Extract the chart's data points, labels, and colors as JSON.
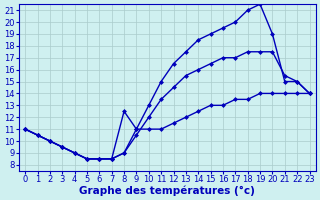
{
  "xlabel": "Graphe des températures (°c)",
  "background_color": "#cff0f0",
  "grid_color": "#aacccc",
  "line_color": "#0000bb",
  "xlim": [
    -0.5,
    23.5
  ],
  "ylim": [
    7.5,
    21.5
  ],
  "xticks": [
    0,
    1,
    2,
    3,
    4,
    5,
    6,
    7,
    8,
    9,
    10,
    11,
    12,
    13,
    14,
    15,
    16,
    17,
    18,
    19,
    20,
    21,
    22,
    23
  ],
  "yticks": [
    8,
    9,
    10,
    11,
    12,
    13,
    14,
    15,
    16,
    17,
    18,
    19,
    20,
    21
  ],
  "line_top_x": [
    0,
    1,
    2,
    3,
    4,
    5,
    6,
    7,
    8,
    9,
    10,
    11,
    12,
    13,
    14,
    15,
    16,
    17,
    18,
    19,
    20,
    21,
    22,
    23
  ],
  "line_top_y": [
    11,
    10.5,
    10,
    9.5,
    9,
    8.5,
    8.5,
    8.5,
    9,
    11,
    13,
    15,
    16.5,
    17.5,
    18.5,
    19.0,
    19.5,
    20.0,
    21.0,
    21.5,
    19.0,
    15.0,
    15.0,
    14.0
  ],
  "line_mid_x": [
    0,
    1,
    2,
    3,
    4,
    5,
    6,
    7,
    8,
    9,
    10,
    11,
    12,
    13,
    14,
    15,
    16,
    17,
    18,
    19,
    20,
    21,
    22,
    23
  ],
  "line_mid_y": [
    11,
    10.5,
    10,
    9.5,
    9,
    8.5,
    8.5,
    8.5,
    9,
    10.5,
    12,
    13.5,
    14.5,
    15.5,
    16.0,
    16.5,
    17.0,
    17.0,
    17.5,
    17.5,
    17.5,
    15.5,
    15.0,
    14.0
  ],
  "line_bot_x": [
    0,
    1,
    2,
    3,
    4,
    5,
    6,
    7,
    8,
    9,
    10,
    11,
    12,
    13,
    14,
    15,
    16,
    17,
    18,
    19,
    20,
    21,
    22,
    23
  ],
  "line_bot_y": [
    11,
    10.5,
    10,
    9.5,
    9,
    8.5,
    8.5,
    8.5,
    12.5,
    11,
    11,
    11,
    11.5,
    12,
    12.5,
    13,
    13,
    13.5,
    13.5,
    14,
    14,
    14,
    14,
    14
  ],
  "marker": "D",
  "marker_size": 2.5,
  "linewidth": 1.0,
  "xlabel_fontsize": 7.5,
  "tick_fontsize": 6
}
